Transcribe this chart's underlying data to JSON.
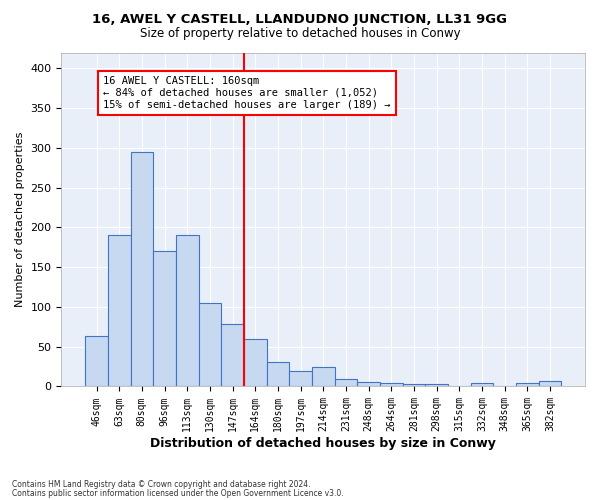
{
  "title1": "16, AWEL Y CASTELL, LLANDUDNO JUNCTION, LL31 9GG",
  "title2": "Size of property relative to detached houses in Conwy",
  "xlabel": "Distribution of detached houses by size in Conwy",
  "ylabel": "Number of detached properties",
  "categories": [
    "46sqm",
    "63sqm",
    "80sqm",
    "96sqm",
    "113sqm",
    "130sqm",
    "147sqm",
    "164sqm",
    "180sqm",
    "197sqm",
    "214sqm",
    "231sqm",
    "248sqm",
    "264sqm",
    "281sqm",
    "298sqm",
    "315sqm",
    "332sqm",
    "348sqm",
    "365sqm",
    "382sqm"
  ],
  "values": [
    63,
    190,
    295,
    170,
    190,
    105,
    79,
    60,
    31,
    20,
    24,
    9,
    6,
    4,
    3,
    3,
    0,
    4,
    0,
    4,
    7
  ],
  "bar_color": "#c6d9f0",
  "bar_edge_color": "#4472c4",
  "vline_color": "red",
  "annotation_title": "16 AWEL Y CASTELL: 160sqm",
  "annotation_line1": "← 84% of detached houses are smaller (1,052)",
  "annotation_line2": "15% of semi-detached houses are larger (189) →",
  "ylim": [
    0,
    420
  ],
  "yticks": [
    0,
    50,
    100,
    150,
    200,
    250,
    300,
    350,
    400
  ],
  "footer1": "Contains HM Land Registry data © Crown copyright and database right 2024.",
  "footer2": "Contains public sector information licensed under the Open Government Licence v3.0.",
  "plot_bg_color": "#e8eff8"
}
